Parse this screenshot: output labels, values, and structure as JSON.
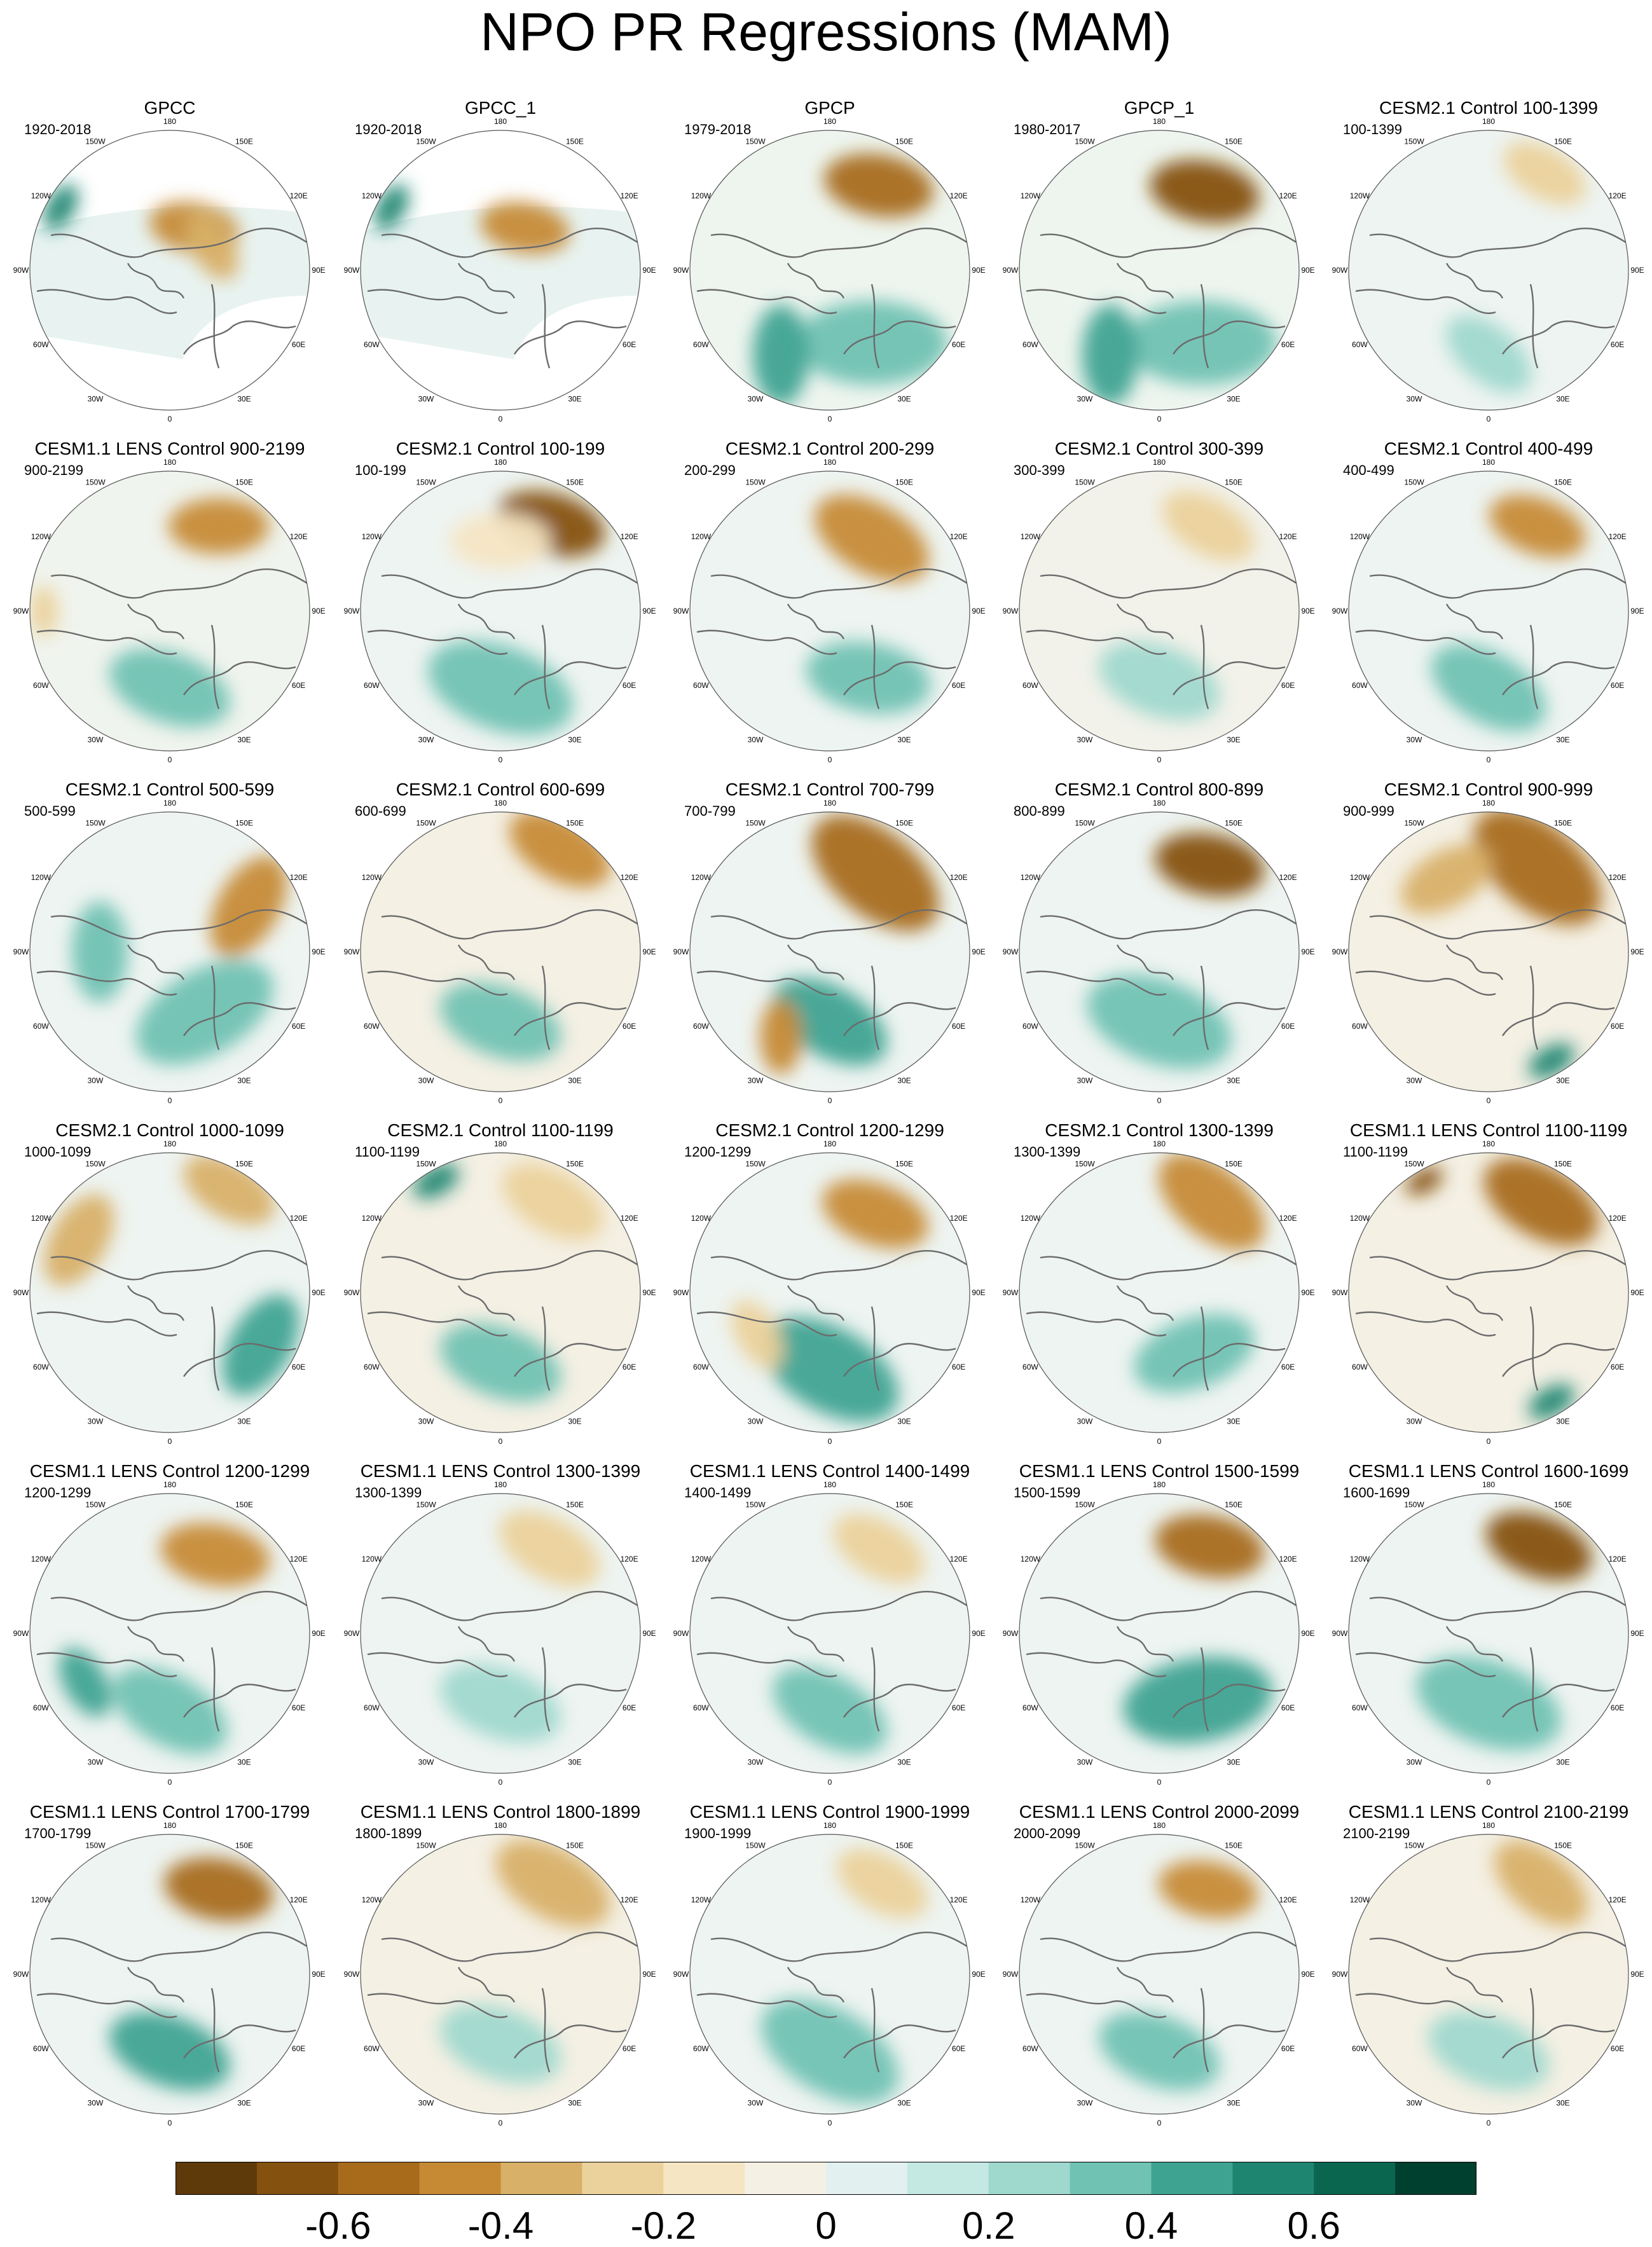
{
  "title": "NPO PR Regressions (MAM)",
  "longitude_labels": {
    "top": "180",
    "upper_left": "150W",
    "upper_right": "150E",
    "mid_left_upper": "120W",
    "mid_right_upper": "120E",
    "left": "90W",
    "right": "90E",
    "mid_left_lower": "60W",
    "mid_right_lower": "60E",
    "lower_left": "30W",
    "lower_right": "30E",
    "bottom": "0"
  },
  "colorbar": {
    "colors": [
      "#5e3a0b",
      "#85510f",
      "#a86b1c",
      "#c68a35",
      "#d8b068",
      "#ebd19b",
      "#f5e5c3",
      "#f4f0e4",
      "#e2f0ef",
      "#c4e8e2",
      "#9fd8cd",
      "#70c2b3",
      "#3fa392",
      "#1e8571",
      "#0b6650",
      "#00402e"
    ],
    "tick_labels": [
      "-0.6",
      "-0.4",
      "-0.2",
      "0",
      "0.2",
      "0.4",
      "0.6"
    ]
  },
  "panels": [
    {
      "title": "GPCC",
      "period": "1920-2018",
      "land_only": true,
      "color": "#e8f3f1",
      "blobs": [
        {
          "q": 1,
          "r": 0.35,
          "a": 160,
          "s": 0.18,
          "v": -0.5
        },
        {
          "q": 2,
          "r": 0.35,
          "a": 180,
          "s": 0.15,
          "v": -0.4
        },
        {
          "q": 10,
          "r": 0.9,
          "a": 0,
          "s": 0.1,
          "v": 0.5
        }
      ]
    },
    {
      "title": "GPCC_1",
      "period": "1920-2018",
      "land_only": true,
      "color": "#e8f3f1",
      "blobs": [
        {
          "q": 1,
          "r": 0.35,
          "a": 160,
          "s": 0.18,
          "v": -0.5
        },
        {
          "q": 10,
          "r": 0.9,
          "a": 0,
          "s": 0.1,
          "v": 0.5
        }
      ]
    },
    {
      "title": "GPCP",
      "period": "1979-2018",
      "color": "#eef5ef",
      "blobs": [
        {
          "q": 1,
          "r": 0.7,
          "a": -20,
          "s": 0.22,
          "v": -0.6
        },
        {
          "q": 5,
          "r": 0.6,
          "a": 30,
          "s": 0.3,
          "v": 0.35
        },
        {
          "q": 7,
          "r": 0.7,
          "a": 60,
          "s": 0.2,
          "v": 0.4
        }
      ]
    },
    {
      "title": "GPCP_1",
      "period": "1980-2017",
      "color": "#eef5ef",
      "blobs": [
        {
          "q": 1,
          "r": 0.65,
          "a": -20,
          "s": 0.22,
          "v": -0.65
        },
        {
          "q": 5,
          "r": 0.6,
          "a": 30,
          "s": 0.3,
          "v": 0.35
        },
        {
          "q": 7,
          "r": 0.7,
          "a": 60,
          "s": 0.2,
          "v": 0.45
        }
      ]
    },
    {
      "title": "CESM2.1 Control 100-1399",
      "period": "100-1399",
      "color": "#eef4f1",
      "blobs": [
        {
          "q": 1,
          "r": 0.8,
          "a": 0,
          "s": 0.18,
          "v": -0.3
        },
        {
          "q": 6,
          "r": 0.6,
          "a": 40,
          "s": 0.2,
          "v": 0.2
        }
      ]
    },
    {
      "title": "CESM1.1 LENS Control 900-2199",
      "period": "900-2199",
      "color": "#f0f4ee",
      "blobs": [
        {
          "q": 1,
          "r": 0.7,
          "a": -30,
          "s": 0.2,
          "v": -0.45
        },
        {
          "q": 6,
          "r": 0.55,
          "a": 20,
          "s": 0.25,
          "v": 0.3
        },
        {
          "q": 9,
          "r": 0.9,
          "a": 0,
          "s": 0.1,
          "v": -0.3
        }
      ]
    },
    {
      "title": "CESM2.1 Control 100-199",
      "period": "100-199",
      "color": "#eef4f1",
      "blobs": [
        {
          "q": 1,
          "r": 0.72,
          "a": -15,
          "s": 0.22,
          "v": -0.65
        },
        {
          "q": 6,
          "r": 0.55,
          "a": 20,
          "s": 0.3,
          "v": 0.35
        },
        {
          "q": 12,
          "r": 0.5,
          "a": 0,
          "s": 0.2,
          "v": -0.2
        }
      ]
    },
    {
      "title": "CESM2.1 Control 200-299",
      "period": "200-299",
      "color": "#eef4f1",
      "blobs": [
        {
          "q": 1,
          "r": 0.6,
          "a": 0,
          "s": 0.25,
          "v": -0.5
        },
        {
          "q": 5,
          "r": 0.55,
          "a": 40,
          "s": 0.25,
          "v": 0.35
        }
      ]
    },
    {
      "title": "CESM2.1 Control 300-399",
      "period": "300-399",
      "color": "#f2f2ea",
      "blobs": [
        {
          "q": 1,
          "r": 0.7,
          "a": 0,
          "s": 0.2,
          "v": -0.25
        },
        {
          "q": 6,
          "r": 0.5,
          "a": 20,
          "s": 0.25,
          "v": 0.2
        }
      ]
    },
    {
      "title": "CESM2.1 Control 400-499",
      "period": "400-499",
      "color": "#eef4f1",
      "blobs": [
        {
          "q": 1,
          "r": 0.7,
          "a": -10,
          "s": 0.2,
          "v": -0.45
        },
        {
          "q": 6,
          "r": 0.55,
          "a": 30,
          "s": 0.25,
          "v": 0.3
        }
      ]
    },
    {
      "title": "CESM2.1 Control 500-599",
      "period": "500-599",
      "color": "#eef4f1",
      "blobs": [
        {
          "q": 2,
          "r": 0.65,
          "a": 60,
          "s": 0.22,
          "v": -0.45
        },
        {
          "q": 5,
          "r": 0.5,
          "a": 0,
          "s": 0.3,
          "v": 0.3
        },
        {
          "q": 9,
          "r": 0.5,
          "a": 0,
          "s": 0.2,
          "v": 0.3
        }
      ]
    },
    {
      "title": "CESM2.1 Control 600-699",
      "period": "600-699",
      "color": "#f4f0e4",
      "blobs": [
        {
          "q": 1,
          "r": 0.85,
          "a": 0,
          "s": 0.22,
          "v": -0.45
        },
        {
          "q": 6,
          "r": 0.5,
          "a": 20,
          "s": 0.25,
          "v": 0.3
        }
      ]
    },
    {
      "title": "CESM2.1 Control 700-799",
      "period": "700-799",
      "color": "#eef4f1",
      "blobs": [
        {
          "q": 1,
          "r": 0.65,
          "a": 10,
          "s": 0.3,
          "v": -0.6
        },
        {
          "q": 6,
          "r": 0.5,
          "a": 30,
          "s": 0.25,
          "v": 0.4
        },
        {
          "q": 7,
          "r": 0.7,
          "a": 60,
          "s": 0.15,
          "v": -0.5
        }
      ]
    },
    {
      "title": "CESM2.1 Control 800-899",
      "period": "800-899",
      "color": "#eef4f1",
      "blobs": [
        {
          "q": 1,
          "r": 0.72,
          "a": -20,
          "s": 0.22,
          "v": -0.65
        },
        {
          "q": 6,
          "r": 0.5,
          "a": 20,
          "s": 0.3,
          "v": 0.35
        }
      ]
    },
    {
      "title": "CESM2.1 Control 900-999",
      "period": "900-999",
      "color": "#f4f0e4",
      "blobs": [
        {
          "q": 1,
          "r": 0.7,
          "a": 10,
          "s": 0.3,
          "v": -0.6
        },
        {
          "q": 5,
          "r": 0.9,
          "a": 0,
          "s": 0.1,
          "v": 0.5
        },
        {
          "q": 11,
          "r": 0.6,
          "a": 0,
          "s": 0.2,
          "v": -0.4
        }
      ]
    },
    {
      "title": "CESM2.1 Control 1000-1099",
      "period": "1000-1099",
      "color": "#eef4f1",
      "blobs": [
        {
          "q": 1,
          "r": 0.85,
          "a": 0,
          "s": 0.2,
          "v": -0.4
        },
        {
          "q": 4,
          "r": 0.75,
          "a": 0,
          "s": 0.22,
          "v": 0.45
        },
        {
          "q": 10,
          "r": 0.75,
          "a": 0,
          "s": 0.2,
          "v": -0.4
        }
      ]
    },
    {
      "title": "CESM2.1 Control 1100-1199",
      "period": "1100-1199",
      "color": "#f4f0e4",
      "blobs": [
        {
          "q": 1,
          "r": 0.75,
          "a": 0,
          "s": 0.22,
          "v": -0.3
        },
        {
          "q": 6,
          "r": 0.5,
          "a": 20,
          "s": 0.25,
          "v": 0.3
        },
        {
          "q": 11,
          "r": 0.92,
          "a": 0,
          "s": 0.1,
          "v": 0.6
        }
      ]
    },
    {
      "title": "CESM2.1 Control 1200-1299",
      "period": "1200-1299",
      "color": "#eef4f1",
      "blobs": [
        {
          "q": 1,
          "r": 0.65,
          "a": -10,
          "s": 0.22,
          "v": -0.5
        },
        {
          "q": 6,
          "r": 0.55,
          "a": 30,
          "s": 0.3,
          "v": 0.45
        },
        {
          "q": 8,
          "r": 0.6,
          "a": 0,
          "s": 0.15,
          "v": -0.3
        }
      ]
    },
    {
      "title": "CESM2.1 Control 1300-1399",
      "period": "1300-1399",
      "color": "#eef4f1",
      "blobs": [
        {
          "q": 1,
          "r": 0.75,
          "a": 10,
          "s": 0.25,
          "v": -0.5
        },
        {
          "q": 5,
          "r": 0.5,
          "a": 10,
          "s": 0.25,
          "v": 0.3
        }
      ]
    },
    {
      "title": "CESM1.1 LENS Control 1100-1199",
      "period": "1100-1199",
      "color": "#f4f0e4",
      "blobs": [
        {
          "q": 1,
          "r": 0.75,
          "a": 0,
          "s": 0.25,
          "v": -0.6
        },
        {
          "q": 5,
          "r": 0.9,
          "a": 0,
          "s": 0.1,
          "v": 0.5
        },
        {
          "q": 11,
          "r": 0.92,
          "a": 0,
          "s": 0.08,
          "v": -0.7
        }
      ]
    },
    {
      "title": "CESM1.1 LENS Control 1200-1299",
      "period": "1200-1299",
      "color": "#eef4f1",
      "blobs": [
        {
          "q": 1,
          "r": 0.65,
          "a": -20,
          "s": 0.22,
          "v": -0.5
        },
        {
          "q": 6,
          "r": 0.55,
          "a": 30,
          "s": 0.25,
          "v": 0.35
        },
        {
          "q": 8,
          "r": 0.7,
          "a": 0,
          "s": 0.15,
          "v": 0.4
        }
      ]
    },
    {
      "title": "CESM1.1 LENS Control 1300-1399",
      "period": "1300-1399",
      "color": "#eef4f1",
      "blobs": [
        {
          "q": 1,
          "r": 0.7,
          "a": 0,
          "s": 0.22,
          "v": -0.3
        },
        {
          "q": 6,
          "r": 0.5,
          "a": 20,
          "s": 0.25,
          "v": 0.25
        }
      ]
    },
    {
      "title": "CESM1.1 LENS Control 1400-1499",
      "period": "1400-1499",
      "color": "#eef4f1",
      "blobs": [
        {
          "q": 1,
          "r": 0.7,
          "a": 0,
          "s": 0.2,
          "v": -0.3
        },
        {
          "q": 6,
          "r": 0.55,
          "a": 30,
          "s": 0.25,
          "v": 0.3
        }
      ]
    },
    {
      "title": "CESM1.1 LENS Control 1500-1599",
      "period": "1500-1599",
      "color": "#eef4f1",
      "blobs": [
        {
          "q": 1,
          "r": 0.72,
          "a": -20,
          "s": 0.22,
          "v": -0.6
        },
        {
          "q": 5,
          "r": 0.55,
          "a": 20,
          "s": 0.3,
          "v": 0.45
        }
      ]
    },
    {
      "title": "CESM1.1 LENS Control 1600-1699",
      "period": "1600-1699",
      "color": "#eef4f1",
      "blobs": [
        {
          "q": 1,
          "r": 0.72,
          "a": -10,
          "s": 0.22,
          "v": -0.65
        },
        {
          "q": 6,
          "r": 0.5,
          "a": 20,
          "s": 0.3,
          "v": 0.35
        }
      ]
    },
    {
      "title": "CESM1.1 LENS Control 1700-1799",
      "period": "1700-1799",
      "color": "#eef4f1",
      "blobs": [
        {
          "q": 1,
          "r": 0.7,
          "a": -20,
          "s": 0.22,
          "v": -0.55
        },
        {
          "q": 6,
          "r": 0.55,
          "a": 20,
          "s": 0.25,
          "v": 0.4
        }
      ]
    },
    {
      "title": "CESM1.1 LENS Control 1800-1899",
      "period": "1800-1899",
      "color": "#f4f0e4",
      "blobs": [
        {
          "q": 1,
          "r": 0.75,
          "a": 0,
          "s": 0.25,
          "v": -0.35
        },
        {
          "q": 6,
          "r": 0.5,
          "a": 20,
          "s": 0.25,
          "v": 0.25
        }
      ]
    },
    {
      "title": "CESM1.1 LENS Control 1900-1999",
      "period": "1900-1999",
      "color": "#eef4f1",
      "blobs": [
        {
          "q": 1,
          "r": 0.75,
          "a": 0,
          "s": 0.2,
          "v": -0.3
        },
        {
          "q": 6,
          "r": 0.55,
          "a": 30,
          "s": 0.3,
          "v": 0.35
        }
      ]
    },
    {
      "title": "CESM1.1 LENS Control 2000-2099",
      "period": "2000-2099",
      "color": "#eef4f1",
      "blobs": [
        {
          "q": 1,
          "r": 0.7,
          "a": -20,
          "s": 0.2,
          "v": -0.5
        },
        {
          "q": 6,
          "r": 0.55,
          "a": 20,
          "s": 0.25,
          "v": 0.3
        }
      ]
    },
    {
      "title": "CESM1.1 LENS Control 2100-2199",
      "period": "2100-2199",
      "color": "#f4f0e4",
      "blobs": [
        {
          "q": 1,
          "r": 0.75,
          "a": 10,
          "s": 0.22,
          "v": -0.35
        },
        {
          "q": 6,
          "r": 0.55,
          "a": 20,
          "s": 0.25,
          "v": 0.25
        }
      ]
    }
  ]
}
